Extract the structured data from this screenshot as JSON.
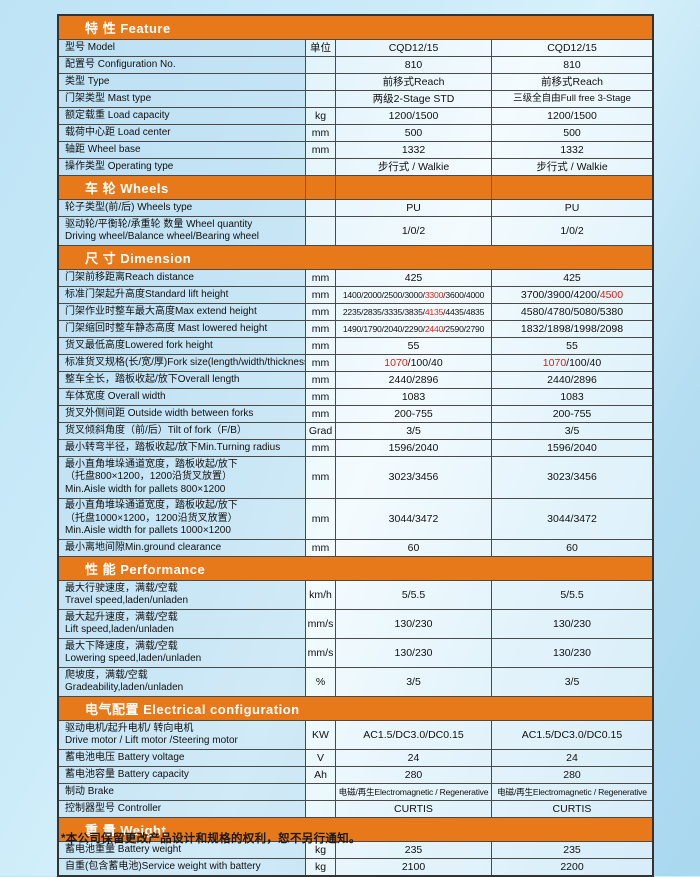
{
  "footnote": "*本公司保留更改产品设计和规格的权利，恕不另行通知。",
  "colors": {
    "accent_orange": "#e8791a",
    "highlight_red": "#d42318",
    "background_blue": "#bde3f5"
  },
  "sections": [
    {
      "title": "特 性 Feature",
      "dividers": false,
      "rows": [
        {
          "label": [
            "型号 Model"
          ],
          "unit": "单位",
          "v1": [
            "CQD12/15"
          ],
          "v2": [
            "CQD12/15"
          ]
        },
        {
          "label": [
            "配置号 Configuration No."
          ],
          "unit": "",
          "v1": [
            "810"
          ],
          "v2": [
            "810"
          ]
        },
        {
          "label": [
            "类型 Type"
          ],
          "unit": "",
          "v1": [
            "前移式Reach"
          ],
          "v2": [
            "前移式Reach"
          ]
        },
        {
          "label": [
            "门架类型 Mast type"
          ],
          "unit": "",
          "v1": [
            "两级2-Stage STD"
          ],
          "v2": [
            "三级全自由Full free 3-Stage"
          ]
        },
        {
          "label": [
            "额定载重 Load capacity"
          ],
          "unit": "kg",
          "v1": [
            "1200/1500"
          ],
          "v2": [
            "1200/1500"
          ]
        },
        {
          "label": [
            "载荷中心距 Load center"
          ],
          "unit": "mm",
          "v1": [
            "500"
          ],
          "v2": [
            "500"
          ]
        },
        {
          "label": [
            "轴距 Wheel base"
          ],
          "unit": "mm",
          "v1": [
            "1332"
          ],
          "v2": [
            "1332"
          ]
        },
        {
          "label": [
            "操作类型 Operating type"
          ],
          "unit": "",
          "v1": [
            "步行式 / Walkie"
          ],
          "v2": [
            "步行式 / Walkie"
          ]
        }
      ]
    },
    {
      "title": "车 轮 Wheels",
      "dividers": true,
      "rows": [
        {
          "label": [
            "轮子类型(前/后) Wheels type"
          ],
          "unit": "",
          "v1": [
            "PU"
          ],
          "v2": [
            "PU"
          ]
        },
        {
          "label": [
            "驱动轮/平衡轮/承重轮 数量 Wheel quantity",
            "Driving wheel/Balance wheel/Bearing wheel"
          ],
          "unit": "",
          "v1": [
            "1/0/2"
          ],
          "v2": [
            "1/0/2"
          ]
        }
      ]
    },
    {
      "title": "尺 寸 Dimension",
      "dividers": false,
      "rows": [
        {
          "label": [
            "门架前移距离Reach distance"
          ],
          "unit": "mm",
          "v1": [
            "425"
          ],
          "v2": [
            "425"
          ]
        },
        {
          "label": [
            "标准门架起升高度Standard lift height"
          ],
          "unit": "mm",
          "v1": [
            "1400/2000/2500/3000/",
            {
              "red": "3300"
            },
            "/3600/4000"
          ],
          "v2": [
            "3700/3900/4200/",
            {
              "red": "4500"
            }
          ]
        },
        {
          "label": [
            "门架作业时整车最大高度Max extend height"
          ],
          "unit": "mm",
          "v1": [
            "2235/2835/3335/3835/",
            {
              "red": "4135"
            },
            "/4435/4835"
          ],
          "v2": [
            "4580/4780/5080/5380"
          ]
        },
        {
          "label": [
            "门架缩回时整车静态高度 Mast lowered height"
          ],
          "unit": "mm",
          "v1": [
            "1490/1790/2040/2290/",
            {
              "red": "2440"
            },
            "/2590/2790"
          ],
          "v2": [
            "1832/1898/1998/2098"
          ]
        },
        {
          "label": [
            "货叉最低高度Lowered fork height"
          ],
          "unit": "mm",
          "v1": [
            "55"
          ],
          "v2": [
            "55"
          ]
        },
        {
          "label": [
            "标准货叉规格(长/宽/厚)Fork size(length/width/thickness)"
          ],
          "unit": "mm",
          "v1": [
            {
              "red": "1070"
            },
            "/100/40"
          ],
          "v2": [
            {
              "red": "1070"
            },
            "/100/40"
          ]
        },
        {
          "label": [
            "整车全长，踏板收起/放下Overall length"
          ],
          "unit": "mm",
          "v1": [
            "2440/2896"
          ],
          "v2": [
            "2440/2896"
          ]
        },
        {
          "label": [
            "车体宽度 Overall width"
          ],
          "unit": "mm",
          "v1": [
            "1083"
          ],
          "v2": [
            "1083"
          ]
        },
        {
          "label": [
            "货叉外侧间距 Outside width between forks"
          ],
          "unit": "mm",
          "v1": [
            "200-755"
          ],
          "v2": [
            "200-755"
          ]
        },
        {
          "label": [
            "货叉倾斜角度（前/后）Tilt of fork（F/B）"
          ],
          "unit": "Grad",
          "v1": [
            "3/5"
          ],
          "v2": [
            "3/5"
          ]
        },
        {
          "label": [
            "最小转弯半径，踏板收起/放下Min.Turning radius"
          ],
          "unit": "mm",
          "v1": [
            "1596/2040"
          ],
          "v2": [
            "1596/2040"
          ]
        },
        {
          "label": [
            "最小直角堆垛通道宽度，踏板收起/放下",
            "（托盘800×1200，1200沿货叉放置）",
            "Min.Aisle width for pallets 800×1200"
          ],
          "unit": "mm",
          "v1": [
            "3023/3456"
          ],
          "v2": [
            "3023/3456"
          ]
        },
        {
          "label": [
            "最小直角堆垛通道宽度，踏板收起/放下",
            "（托盘1000×1200，1200沿货叉放置）",
            "Min.Aisle width for pallets 1000×1200"
          ],
          "unit": "mm",
          "v1": [
            "3044/3472"
          ],
          "v2": [
            "3044/3472"
          ]
        },
        {
          "label": [
            "最小离地间隙Min.ground clearance"
          ],
          "unit": "mm",
          "v1": [
            "60"
          ],
          "v2": [
            "60"
          ]
        }
      ]
    },
    {
      "title": "性 能 Performance",
      "dividers": false,
      "rows": [
        {
          "label": [
            "最大行驶速度，满载/空载",
            "Travel speed,laden/unladen"
          ],
          "unit": "km/h",
          "v1": [
            "5/5.5"
          ],
          "v2": [
            "5/5.5"
          ]
        },
        {
          "label": [
            "最大起升速度，满载/空载",
            "Lift speed,laden/unladen"
          ],
          "unit": "mm/s",
          "v1": [
            "130/230"
          ],
          "v2": [
            "130/230"
          ]
        },
        {
          "label": [
            "最大下降速度，满载/空载",
            "Lowering speed,laden/unladen"
          ],
          "unit": "mm/s",
          "v1": [
            "130/230"
          ],
          "v2": [
            "130/230"
          ]
        },
        {
          "label": [
            "爬坡度，满载/空载",
            "Gradeability,laden/unladen"
          ],
          "unit": "%",
          "v1": [
            "3/5"
          ],
          "v2": [
            "3/5"
          ]
        }
      ]
    },
    {
      "title": "电气配置 Electrical configuration",
      "dividers": false,
      "rows": [
        {
          "label": [
            "驱动电机/起升电机/ 转向电机",
            "Drive motor / Lift motor /Steering motor"
          ],
          "unit": "KW",
          "v1": [
            "AC1.5/DC3.0/DC0.15"
          ],
          "v2": [
            "AC1.5/DC3.0/DC0.15"
          ]
        },
        {
          "label": [
            "蓄电池电压 Battery voltage"
          ],
          "unit": "V",
          "v1": [
            "24"
          ],
          "v2": [
            "24"
          ]
        },
        {
          "label": [
            "蓄电池容量 Battery capacity"
          ],
          "unit": "Ah",
          "v1": [
            "280"
          ],
          "v2": [
            "280"
          ]
        },
        {
          "label": [
            "制动 Brake"
          ],
          "unit": "",
          "v1": [
            "电磁/再生Electromagnetic / Regenerative"
          ],
          "v2": [
            "电磁/再生Electromagnetic / Regenerative"
          ]
        },
        {
          "label": [
            "控制器型号 Controller"
          ],
          "unit": "",
          "v1": [
            "CURTIS"
          ],
          "v2": [
            "CURTIS"
          ]
        }
      ]
    },
    {
      "title": "重 量 Weight",
      "dividers": false,
      "rows": [
        {
          "label": [
            "蓄电池重量 Battery weight"
          ],
          "unit": "kg",
          "v1": [
            "235"
          ],
          "v2": [
            "235"
          ]
        },
        {
          "label": [
            "自重(包含蓄电池)Service weight with battery"
          ],
          "unit": "kg",
          "v1": [
            "2100"
          ],
          "v2": [
            "2200"
          ]
        }
      ]
    }
  ]
}
